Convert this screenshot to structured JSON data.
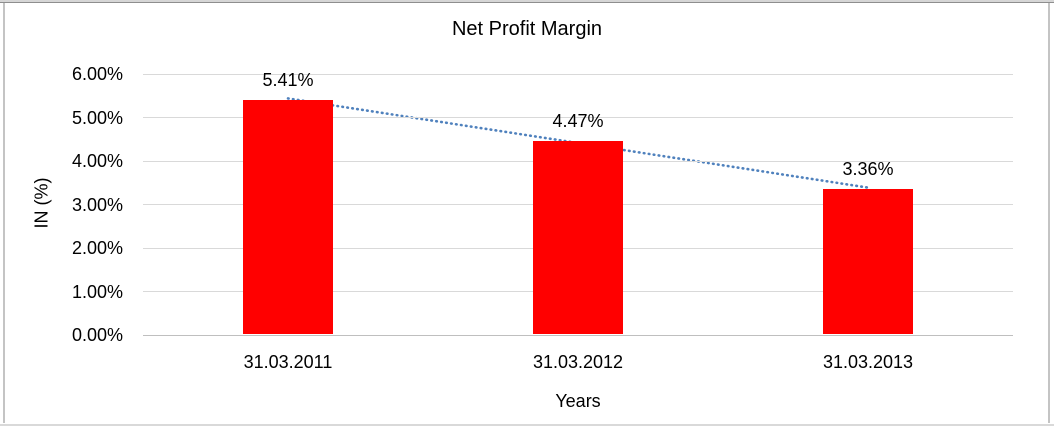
{
  "frame": {
    "top_light_color": "#d6d6d6",
    "top_dark_color": "#8e8e8e",
    "side_color": "#c4c4c4",
    "bottom_color": "#d9d9d9"
  },
  "chart_data": {
    "type": "bar",
    "title": "Net Profit Margin",
    "xlabel": "Years",
    "ylabel": "IN (%)",
    "categories": [
      "31.03.2011",
      "31.03.2012",
      "31.03.2013"
    ],
    "values": [
      5.41,
      4.47,
      3.36
    ],
    "data_labels": [
      "5.41%",
      "4.47%",
      "3.36%"
    ],
    "y_ticks": [
      "6.00%",
      "5.00%",
      "4.00%",
      "3.00%",
      "2.00%",
      "1.00%",
      "0.00%"
    ],
    "ylim": [
      0,
      6
    ],
    "y_tick_step": 1,
    "grid": true,
    "legend": "none",
    "bar_color": "#ff0000",
    "gridline_color": "#d9d9d9",
    "axis_line_color": "#bfbfbf",
    "trendline": {
      "type": "linear",
      "style": "dotted",
      "color": "#4f81bd"
    }
  }
}
